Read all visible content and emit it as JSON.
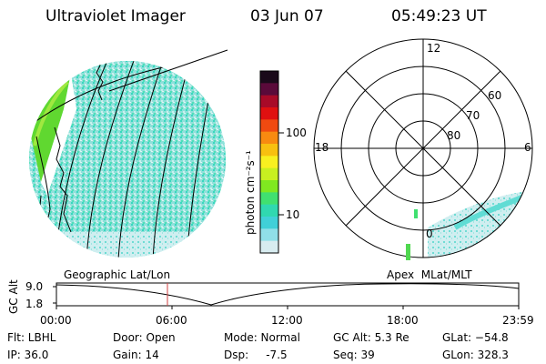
{
  "header": {
    "instrument": "Ultraviolet Imager",
    "date": "03 Jun 07",
    "time": "05:49:23 UT"
  },
  "colorbar": {
    "unit_label": "photon cm⁻²s⁻¹",
    "ticks": [
      "100",
      "10"
    ],
    "colors": [
      "#1a0a1a",
      "#5a0a3a",
      "#a80a28",
      "#e01010",
      "#f04a10",
      "#f88a10",
      "#f8c010",
      "#f8f020",
      "#c8f020",
      "#80e820",
      "#40e070",
      "#30d8b0",
      "#40d0d8",
      "#90dfe8",
      "#d8ecf0"
    ]
  },
  "polar_plot": {
    "mlt_labels": [
      "12",
      "18",
      "6",
      "0"
    ],
    "mlat_labels": [
      "60",
      "70",
      "80"
    ]
  },
  "timeline": {
    "left_label": "Geographic Lat/Lon",
    "right_label": "Apex  MLat/MLT",
    "y_axis_label": "GC Alt",
    "y_ticks": [
      "9.0",
      "1.8"
    ],
    "x_ticks": [
      "00:00",
      "06:00",
      "12:00",
      "18:00",
      "23:59"
    ]
  },
  "info": {
    "flt": "Flt: LBHL",
    "ip": "IP: 36.0",
    "door": "Door: Open",
    "gain": "Gain: 14",
    "mode": "Mode: Normal",
    "dsp": "Dsp:     -7.5",
    "gc_alt": "GC Alt: 5.3 Re",
    "seq": "Seq: 39",
    "glat": "GLat: −54.8",
    "glon": "GLon: 328.3"
  }
}
